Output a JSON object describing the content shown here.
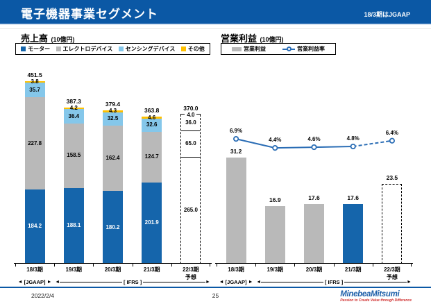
{
  "header": {
    "title": "電子機器事業セグメント",
    "note": "18/3期はJGAAP"
  },
  "colors": {
    "header_blue": "#0b58a5",
    "bar_blue": "#1565ab",
    "bar_gray": "#b9b9b9",
    "bar_lightblue": "#85c7ea",
    "bar_yellow": "#ffc000",
    "line_blue": "#2a6db5"
  },
  "chart_data": [
    {
      "type": "bar",
      "subtype": "stacked",
      "title": "売上高",
      "unit_label": "(10億円)",
      "categories": [
        "18/3期",
        "19/3期",
        "20/3期",
        "21/3期",
        "22/3期"
      ],
      "category_note": {
        "index": 4,
        "label": "予想"
      },
      "forecast_index": 4,
      "series": [
        {
          "name": "モーター",
          "color": "#1565ab",
          "values": [
            184.2,
            188.1,
            180.2,
            201.9,
            265.0
          ]
        },
        {
          "name": "エレクトロデバイス",
          "color": "#b9b9b9",
          "values": [
            227.8,
            158.5,
            162.4,
            124.7,
            65.0
          ]
        },
        {
          "name": "センシングデバイス",
          "color": "#85c7ea",
          "values": [
            35.7,
            36.4,
            32.5,
            32.6,
            36.0
          ]
        },
        {
          "name": "その他",
          "color": "#ffc000",
          "values": [
            3.8,
            4.2,
            4.3,
            4.6,
            4.0
          ]
        }
      ],
      "totals": [
        451.5,
        387.3,
        379.4,
        363.8,
        370.0
      ],
      "ylim": [
        0,
        480
      ],
      "axis_annotations": {
        "jgaap": "[JGAAP]",
        "ifrs": "[ IFRS ]"
      }
    },
    {
      "type": "bar+line",
      "title": "営業利益",
      "unit_label": "(10億円)",
      "categories": [
        "18/3期",
        "19/3期",
        "20/3期",
        "21/3期",
        "22/3期"
      ],
      "category_note": {
        "index": 4,
        "label": "予想"
      },
      "bars": {
        "name": "営業利益",
        "values": [
          31.2,
          16.9,
          17.6,
          17.6,
          23.5
        ],
        "default_color": "#b9b9b9",
        "highlight": {
          "index": 3,
          "color": "#1565ab"
        },
        "forecast_index": 4
      },
      "line": {
        "name": "営業利益率",
        "values_pct": [
          6.9,
          4.4,
          4.6,
          4.8,
          6.4
        ],
        "labels": [
          "6.9%",
          "4.4%",
          "4.6%",
          "4.8%",
          "6.4%"
        ],
        "color": "#2a6db5",
        "dashed_from_index": 3
      },
      "ylim": [
        0,
        35
      ],
      "axis_annotations": {
        "jgaap": "[JGAAP]",
        "ifrs": "[ IFRS ]"
      }
    }
  ],
  "footer": {
    "date": "2022/2/4",
    "page": "25",
    "logo": "MinebeaMitsumi",
    "tagline": "Passion to Create Value through Difference"
  }
}
